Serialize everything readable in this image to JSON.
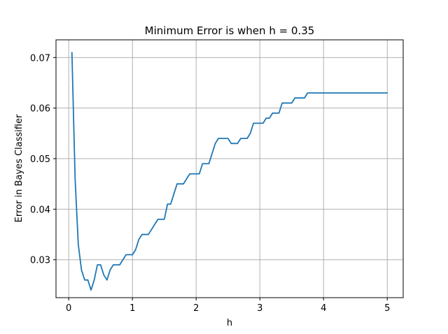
{
  "chart_data": {
    "type": "line",
    "title": "Minimum Error is when h = 0.35",
    "xlabel": "h",
    "ylabel": "Error in Bayes Classifier",
    "xlim": [
      -0.2,
      5.25
    ],
    "ylim": [
      0.0225,
      0.0735
    ],
    "xticks": [
      0,
      1,
      2,
      3,
      4,
      5
    ],
    "xtick_labels": [
      "0",
      "1",
      "2",
      "3",
      "4",
      "5"
    ],
    "yticks": [
      0.03,
      0.04,
      0.05,
      0.06,
      0.07
    ],
    "ytick_labels": [
      "0.03",
      "0.04",
      "0.05",
      "0.06",
      "0.07"
    ],
    "grid": true,
    "line_color": "#1f77b4",
    "series": [
      {
        "x": [
          0.05,
          0.1,
          0.15,
          0.2,
          0.25,
          0.3,
          0.35,
          0.4,
          0.45,
          0.5,
          0.55,
          0.6,
          0.65,
          0.7,
          0.75,
          0.8,
          0.85,
          0.9,
          0.95,
          1.0,
          1.05,
          1.1,
          1.15,
          1.2,
          1.25,
          1.3,
          1.35,
          1.4,
          1.45,
          1.5,
          1.55,
          1.6,
          1.65,
          1.7,
          1.75,
          1.8,
          1.85,
          1.9,
          1.95,
          2.0,
          2.05,
          2.1,
          2.15,
          2.2,
          2.25,
          2.3,
          2.35,
          2.4,
          2.45,
          2.5,
          2.55,
          2.6,
          2.65,
          2.7,
          2.75,
          2.8,
          2.85,
          2.9,
          2.95,
          3.0,
          3.05,
          3.1,
          3.15,
          3.2,
          3.25,
          3.3,
          3.35,
          3.4,
          3.45,
          3.5,
          3.55,
          3.6,
          3.65,
          3.7,
          3.75,
          3.8,
          3.85,
          3.9,
          3.95,
          4.0,
          4.05,
          4.1,
          4.15,
          4.2,
          4.25,
          4.3,
          4.35,
          4.4,
          4.45,
          4.5,
          4.55,
          4.6,
          4.65,
          4.7,
          4.75,
          4.8,
          4.85,
          4.9,
          4.95,
          5.0
        ],
        "y": [
          0.071,
          0.046,
          0.033,
          0.028,
          0.026,
          0.026,
          0.024,
          0.026,
          0.029,
          0.029,
          0.027,
          0.026,
          0.028,
          0.029,
          0.029,
          0.029,
          0.03,
          0.031,
          0.031,
          0.031,
          0.032,
          0.034,
          0.035,
          0.035,
          0.035,
          0.036,
          0.037,
          0.038,
          0.038,
          0.038,
          0.041,
          0.041,
          0.043,
          0.045,
          0.045,
          0.045,
          0.046,
          0.047,
          0.047,
          0.047,
          0.047,
          0.049,
          0.049,
          0.049,
          0.051,
          0.053,
          0.054,
          0.054,
          0.054,
          0.054,
          0.053,
          0.053,
          0.053,
          0.054,
          0.054,
          0.054,
          0.055,
          0.057,
          0.057,
          0.057,
          0.057,
          0.058,
          0.058,
          0.059,
          0.059,
          0.059,
          0.061,
          0.061,
          0.061,
          0.061,
          0.062,
          0.062,
          0.062,
          0.062,
          0.063,
          0.063,
          0.063,
          0.063,
          0.063,
          0.063,
          0.063,
          0.063,
          0.063,
          0.063,
          0.063,
          0.063,
          0.063,
          0.063,
          0.063,
          0.063,
          0.063,
          0.063,
          0.063,
          0.063,
          0.063,
          0.063,
          0.063,
          0.063,
          0.063,
          0.063
        ]
      }
    ]
  }
}
